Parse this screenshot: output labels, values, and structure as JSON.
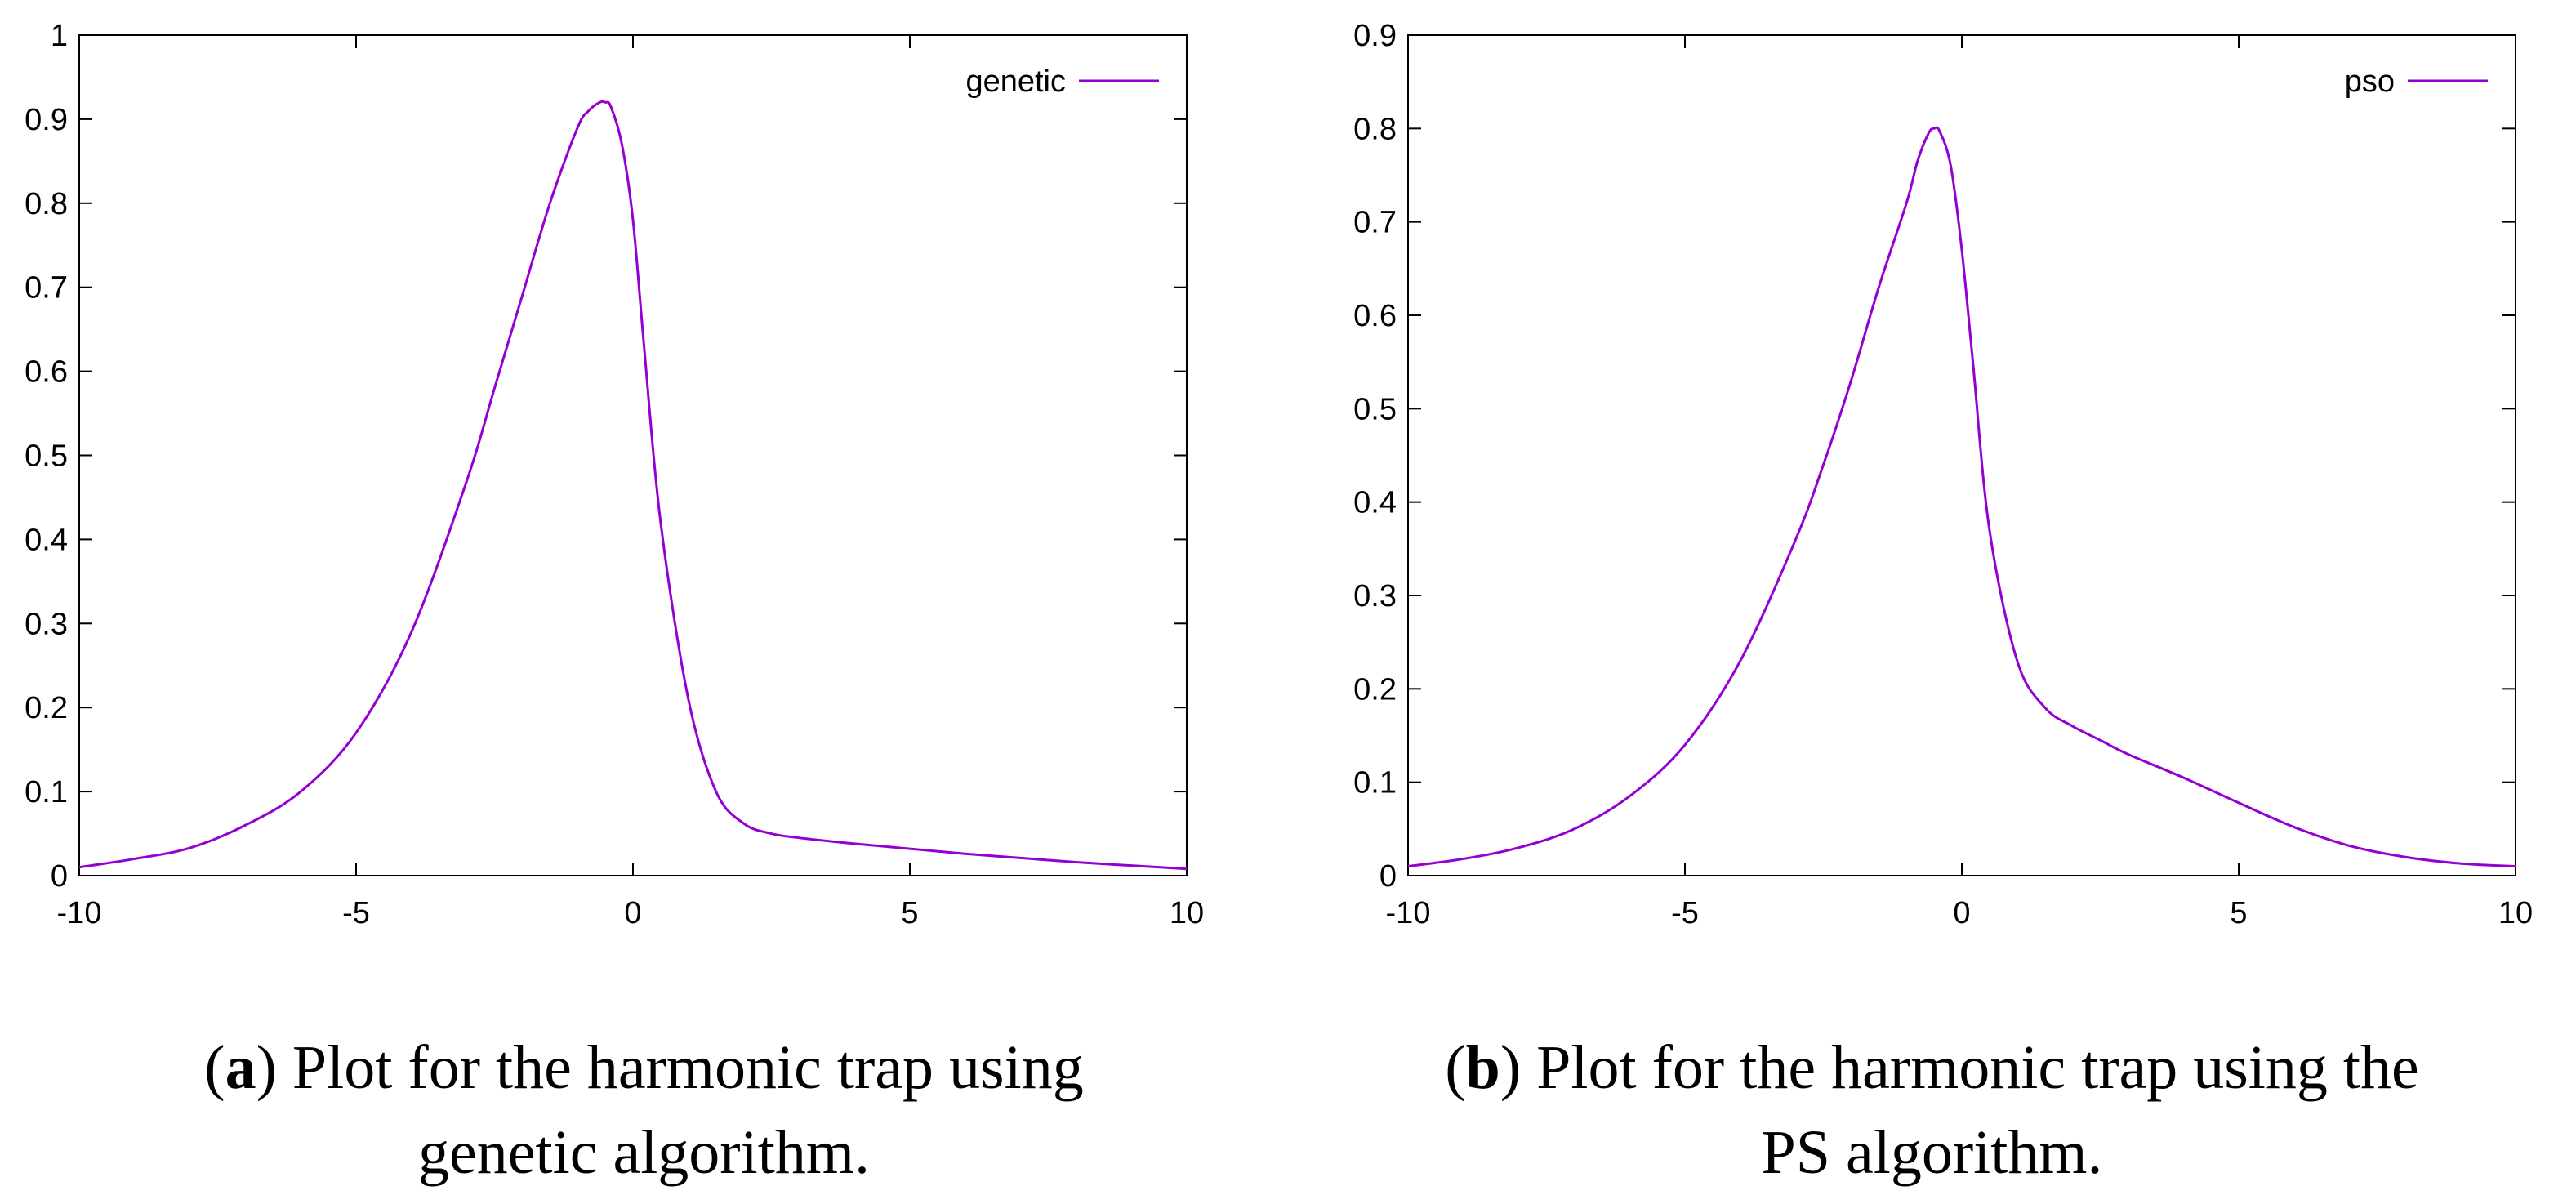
{
  "colors": {
    "series": "#9400D3",
    "axis": "#000000"
  },
  "chart_data": [
    {
      "type": "line",
      "title": "",
      "xlabel": "",
      "ylabel": "",
      "xlim": [
        -10,
        10
      ],
      "ylim": [
        0,
        1
      ],
      "x_ticks": [
        -10,
        -5,
        0,
        5,
        10
      ],
      "x_tick_labels": [
        "-10",
        "-5",
        "0",
        "5",
        "10"
      ],
      "y_ticks": [
        0,
        0.1,
        0.2,
        0.3,
        0.4,
        0.5,
        0.6,
        0.7,
        0.8,
        0.9,
        1
      ],
      "y_tick_labels": [
        "0",
        "0.1",
        "0.2",
        "0.3",
        "0.4",
        "0.5",
        "0.6",
        "0.7",
        "0.8",
        "0.9",
        "1"
      ],
      "grid": false,
      "legend_position": "top-right",
      "series": [
        {
          "name": "genetic",
          "x": [
            -10,
            -9,
            -8,
            -7,
            -6,
            -5,
            -4,
            -3,
            -2.5,
            -2,
            -1.5,
            -1,
            -0.8,
            -0.6,
            -0.5,
            -0.4,
            -0.2,
            0,
            0.2,
            0.5,
            1,
            1.5,
            2,
            2.5,
            3,
            4,
            5,
            6,
            7,
            8,
            9,
            10
          ],
          "y": [
            0.01,
            0.02,
            0.033,
            0.06,
            0.1,
            0.17,
            0.29,
            0.47,
            0.58,
            0.69,
            0.8,
            0.89,
            0.91,
            0.92,
            0.92,
            0.915,
            0.87,
            0.78,
            0.63,
            0.42,
            0.21,
            0.1,
            0.062,
            0.05,
            0.045,
            0.038,
            0.032,
            0.026,
            0.021,
            0.016,
            0.012,
            0.008
          ]
        }
      ]
    },
    {
      "type": "line",
      "title": "",
      "xlabel": "",
      "ylabel": "",
      "xlim": [
        -10,
        10
      ],
      "ylim": [
        0,
        0.9
      ],
      "x_ticks": [
        -10,
        -5,
        0,
        5,
        10
      ],
      "x_tick_labels": [
        "-10",
        "-5",
        "0",
        "5",
        "10"
      ],
      "y_ticks": [
        0,
        0.1,
        0.2,
        0.3,
        0.4,
        0.5,
        0.6,
        0.7,
        0.8,
        0.9
      ],
      "y_tick_labels": [
        "0",
        "0.1",
        "0.2",
        "0.3",
        "0.4",
        "0.5",
        "0.6",
        "0.7",
        "0.8",
        "0.9"
      ],
      "grid": false,
      "legend_position": "top-right",
      "series": [
        {
          "name": "pso",
          "x": [
            -10,
            -9,
            -8,
            -7,
            -6,
            -5,
            -4,
            -3,
            -2.5,
            -2,
            -1.5,
            -1,
            -0.8,
            -0.6,
            -0.5,
            -0.4,
            -0.2,
            0,
            0.2,
            0.5,
            1,
            1.5,
            2,
            2.5,
            3,
            4,
            5,
            6,
            7,
            8,
            9,
            10
          ],
          "y": [
            0.01,
            0.018,
            0.03,
            0.05,
            0.085,
            0.14,
            0.23,
            0.36,
            0.44,
            0.53,
            0.63,
            0.72,
            0.765,
            0.795,
            0.8,
            0.797,
            0.76,
            0.67,
            0.55,
            0.37,
            0.23,
            0.18,
            0.16,
            0.145,
            0.13,
            0.105,
            0.078,
            0.052,
            0.032,
            0.02,
            0.013,
            0.01
          ]
        }
      ]
    }
  ],
  "captions": [
    {
      "tag": "a",
      "line1": ") Plot for the harmonic trap using",
      "line2": "genetic algorithm."
    },
    {
      "tag": "b",
      "line1": ") Plot for the harmonic trap using the",
      "line2": "PS algorithm."
    }
  ]
}
